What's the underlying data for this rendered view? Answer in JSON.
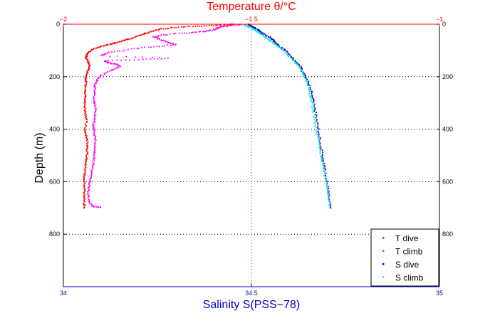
{
  "chart_data": {
    "type": "scatter",
    "top_axis": {
      "label": "Temperature θ/°C",
      "lim": [
        -2,
        -1
      ],
      "ticks": [
        -2,
        -1.5,
        -1
      ],
      "tick_labels": [
        "−2",
        "−1.5",
        "−1"
      ],
      "color": "#ff0000"
    },
    "bottom_axis": {
      "label": "Salinity S(PSS−78)",
      "lim": [
        34,
        35
      ],
      "ticks": [
        34,
        34.5,
        35
      ],
      "tick_labels": [
        "34",
        "34.5",
        "35"
      ],
      "color": "#0000cc"
    },
    "y_axis": {
      "label": "Depth (m)",
      "lim": [
        0,
        1000
      ],
      "reversed": true,
      "ticks": [
        0,
        200,
        400,
        600,
        800
      ],
      "tick_labels": [
        "0",
        "200",
        "400",
        "600",
        "800"
      ]
    },
    "grid": {
      "horizontal": [
        200,
        400,
        600,
        800
      ],
      "vertical_temperature": [
        -1.5
      ],
      "style": "dotted"
    },
    "legend_position": "bottom-right",
    "series": [
      {
        "name": "T dive",
        "axis": "temperature",
        "color": "#ff0000",
        "points": [
          [
            -1.55,
            0
          ],
          [
            -1.56,
            3
          ],
          [
            -1.6,
            5
          ],
          [
            -1.65,
            8
          ],
          [
            -1.7,
            12
          ],
          [
            -1.74,
            18
          ],
          [
            -1.76,
            25
          ],
          [
            -1.78,
            35
          ],
          [
            -1.8,
            45
          ],
          [
            -1.82,
            55
          ],
          [
            -1.84,
            62
          ],
          [
            -1.86,
            70
          ],
          [
            -1.88,
            78
          ],
          [
            -1.9,
            85
          ],
          [
            -1.92,
            95
          ],
          [
            -1.935,
            110
          ],
          [
            -1.94,
            125
          ],
          [
            -1.935,
            140
          ],
          [
            -1.93,
            160
          ],
          [
            -1.935,
            180
          ],
          [
            -1.94,
            200
          ],
          [
            -1.94,
            220
          ],
          [
            -1.942,
            250
          ],
          [
            -1.94,
            280
          ],
          [
            -1.944,
            300
          ],
          [
            -1.942,
            330
          ],
          [
            -1.938,
            360
          ],
          [
            -1.943,
            400
          ],
          [
            -1.938,
            430
          ],
          [
            -1.935,
            460
          ],
          [
            -1.937,
            490
          ],
          [
            -1.94,
            520
          ],
          [
            -1.942,
            550
          ],
          [
            -1.945,
            580
          ],
          [
            -1.943,
            610
          ],
          [
            -1.944,
            640
          ],
          [
            -1.945,
            670
          ],
          [
            -1.945,
            700
          ]
        ]
      },
      {
        "name": "T climb",
        "axis": "temperature",
        "color": "#ff00ff",
        "points": [
          [
            -1.9,
            698
          ],
          [
            -1.92,
            695
          ],
          [
            -1.93,
            680
          ],
          [
            -1.935,
            650
          ],
          [
            -1.932,
            620
          ],
          [
            -1.928,
            590
          ],
          [
            -1.925,
            560
          ],
          [
            -1.92,
            530
          ],
          [
            -1.918,
            500
          ],
          [
            -1.916,
            470
          ],
          [
            -1.915,
            440
          ],
          [
            -1.918,
            410
          ],
          [
            -1.92,
            385
          ],
          [
            -1.917,
            360
          ],
          [
            -1.914,
            330
          ],
          [
            -1.917,
            300
          ],
          [
            -1.918,
            270
          ],
          [
            -1.917,
            240
          ],
          [
            -1.912,
            215
          ],
          [
            -1.9,
            195
          ],
          [
            -1.87,
            175
          ],
          [
            -1.85,
            160
          ],
          [
            -1.86,
            152
          ],
          [
            -1.88,
            148
          ],
          [
            -1.89,
            140
          ],
          [
            -1.8,
            135
          ],
          [
            -1.72,
            130
          ],
          [
            -1.9,
            120
          ],
          [
            -1.88,
            108
          ],
          [
            -1.82,
            95
          ],
          [
            -1.76,
            85
          ],
          [
            -1.7,
            78
          ],
          [
            -1.72,
            70
          ],
          [
            -1.74,
            60
          ],
          [
            -1.76,
            48
          ],
          [
            -1.73,
            40
          ],
          [
            -1.67,
            34
          ],
          [
            -1.63,
            28
          ],
          [
            -1.6,
            22
          ],
          [
            -1.59,
            15
          ],
          [
            -1.58,
            10
          ],
          [
            -1.56,
            5
          ],
          [
            -1.52,
            2
          ]
        ]
      },
      {
        "name": "S dive",
        "axis": "salinity",
        "color": "#0000aa",
        "points": [
          [
            34.49,
            0
          ],
          [
            34.5,
            8
          ],
          [
            34.51,
            15
          ],
          [
            34.52,
            25
          ],
          [
            34.53,
            35
          ],
          [
            34.55,
            50
          ],
          [
            34.56,
            65
          ],
          [
            34.57,
            80
          ],
          [
            34.59,
            100
          ],
          [
            34.61,
            130
          ],
          [
            34.63,
            160
          ],
          [
            34.64,
            190
          ],
          [
            34.652,
            220
          ],
          [
            34.66,
            260
          ],
          [
            34.666,
            300
          ],
          [
            34.672,
            350
          ],
          [
            34.678,
            400
          ],
          [
            34.683,
            450
          ],
          [
            34.689,
            500
          ],
          [
            34.695,
            550
          ],
          [
            34.701,
            600
          ],
          [
            34.706,
            650
          ],
          [
            34.71,
            700
          ]
        ]
      },
      {
        "name": "S climb",
        "axis": "salinity",
        "color": "#00e5ee",
        "points": [
          [
            34.71,
            700
          ],
          [
            34.704,
            650
          ],
          [
            34.698,
            600
          ],
          [
            34.692,
            550
          ],
          [
            34.685,
            500
          ],
          [
            34.679,
            450
          ],
          [
            34.673,
            400
          ],
          [
            34.667,
            350
          ],
          [
            34.661,
            300
          ],
          [
            34.655,
            260
          ],
          [
            34.648,
            220
          ],
          [
            34.638,
            190
          ],
          [
            34.625,
            160
          ],
          [
            34.605,
            130
          ],
          [
            34.585,
            100
          ],
          [
            34.566,
            80
          ],
          [
            34.552,
            65
          ],
          [
            34.538,
            50
          ],
          [
            34.522,
            35
          ],
          [
            34.512,
            25
          ],
          [
            34.502,
            15
          ],
          [
            34.49,
            8
          ],
          [
            34.48,
            2
          ]
        ]
      }
    ]
  }
}
